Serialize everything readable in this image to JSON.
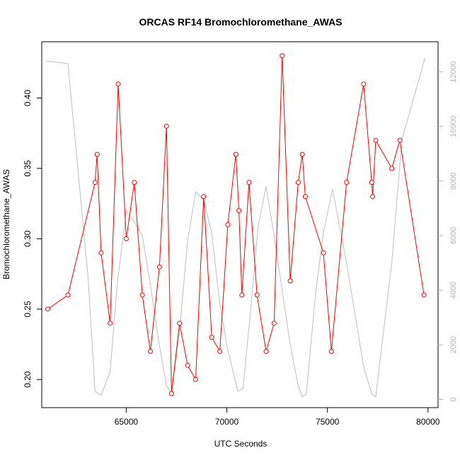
{
  "chart_data": {
    "type": "line",
    "title": "ORCAS RF14 Bromochloromethane_AWAS",
    "xlabel": "UTC Seconds",
    "ylabel": "Bromochloromethane_AWAS",
    "xlim": [
      60800,
      80500
    ],
    "ylim": [
      0.18,
      0.44
    ],
    "y2lim": [
      -300,
      13100
    ],
    "x_ticks": [
      65000,
      70000,
      75000,
      80000
    ],
    "y_ticks": [
      0.2,
      0.25,
      0.3,
      0.35,
      0.4
    ],
    "y2_ticks": [
      0,
      2000,
      4000,
      6000,
      8000,
      10000,
      12000
    ],
    "grid": false,
    "colors": {
      "primary": "#ff0000",
      "secondary": "#bebebe",
      "axis": "#000000",
      "secondary_axis": "#b3b3b3"
    },
    "series": [
      {
        "axis": "left",
        "style": "line-with-open-circles",
        "x": [
          61100,
          62100,
          63450,
          63550,
          63750,
          64200,
          64600,
          65000,
          65400,
          65800,
          66200,
          66650,
          67000,
          67250,
          67650,
          68050,
          68450,
          68850,
          69250,
          69650,
          70050,
          70450,
          70600,
          70750,
          71100,
          71500,
          71950,
          72350,
          72750,
          73150,
          73550,
          73750,
          73900,
          74800,
          75200,
          75950,
          76800,
          77200,
          77250,
          77400,
          78200,
          78600,
          79800
        ],
        "values": [
          0.25,
          0.26,
          0.34,
          0.36,
          0.29,
          0.24,
          0.41,
          0.3,
          0.34,
          0.26,
          0.22,
          0.28,
          0.38,
          0.19,
          0.24,
          0.21,
          0.2,
          0.33,
          0.23,
          0.22,
          0.31,
          0.36,
          0.32,
          0.26,
          0.34,
          0.26,
          0.22,
          0.24,
          0.43,
          0.27,
          0.34,
          0.36,
          0.33,
          0.29,
          0.22,
          0.34,
          0.41,
          0.34,
          0.33,
          0.37,
          0.35,
          0.37,
          0.26
        ]
      },
      {
        "axis": "right",
        "style": "line",
        "x": [
          61000,
          61500,
          62100,
          63100,
          63450,
          63750,
          64200,
          64550,
          65000,
          65400,
          65800,
          66200,
          66600,
          67000,
          67250,
          67650,
          68050,
          68450,
          68850,
          69250,
          69650,
          70050,
          70550,
          70800,
          71150,
          71550,
          71950,
          72350,
          72750,
          73150,
          73550,
          73750,
          73950,
          74400,
          74800,
          75250,
          75950,
          76800,
          77200,
          77400,
          78200,
          78700,
          79850
        ],
        "values": [
          12400,
          12350,
          12300,
          4500,
          300,
          150,
          1000,
          4200,
          6900,
          6500,
          6000,
          4200,
          2200,
          500,
          200,
          2500,
          5800,
          7600,
          7300,
          6100,
          3500,
          1800,
          300,
          400,
          3000,
          6300,
          7800,
          6000,
          4000,
          2000,
          500,
          100,
          200,
          3800,
          6100,
          7700,
          5000,
          1200,
          200,
          100,
          5000,
          9500,
          12500
        ]
      }
    ]
  }
}
